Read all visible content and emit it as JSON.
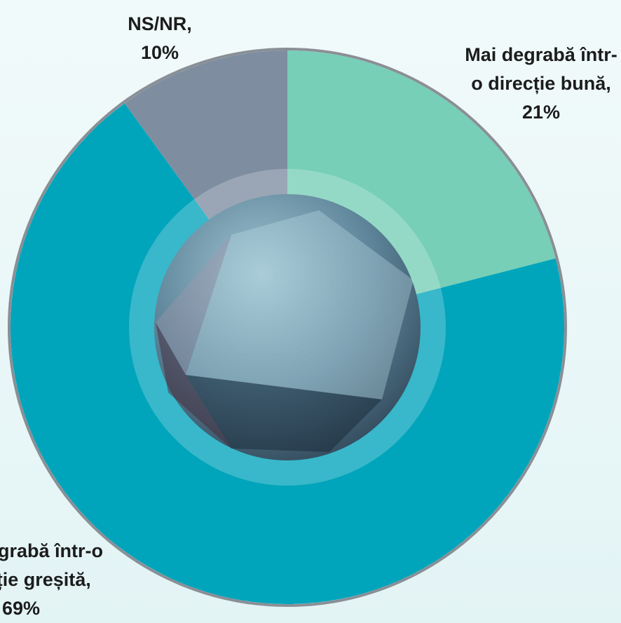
{
  "chart_data": {
    "type": "pie",
    "categories": [
      "Mai degrabă într-o direcție bună,",
      "Mai degrabă într-o direcție greșită,",
      "NS/NR,"
    ],
    "values": [
      21,
      69,
      10
    ],
    "value_labels": [
      "21%",
      "69%",
      "10%"
    ],
    "colors": [
      "#76cfb6",
      "#00a5bb",
      "#7e8ea0"
    ],
    "start_angle": 0,
    "direction": "clockwise"
  }
}
